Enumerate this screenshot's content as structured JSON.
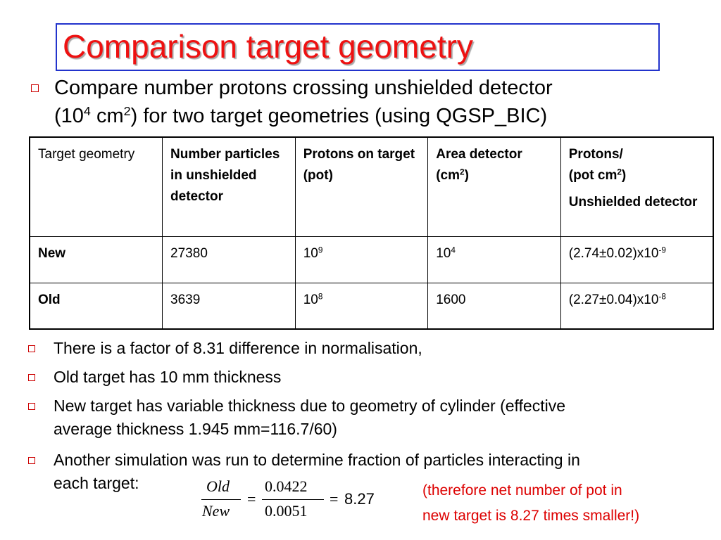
{
  "title": "Comparison target geometry",
  "intro": {
    "line1": "Compare number protons crossing unshielded detector",
    "line2_a": "(10",
    "line2_sup1": "4",
    "line2_b": " cm",
    "line2_sup2": "2",
    "line2_c": ") for two target geometries (using QGSP_BIC)"
  },
  "table": {
    "headers": {
      "geometry": "Target geometry",
      "particles": "Number particles in unshielded detector",
      "pot": "Protons on target (pot)",
      "area_a": "Area detector (cm",
      "area_sup": "2",
      "area_b": ")",
      "protons_l1": "Protons/",
      "protons_l2a": "(pot cm",
      "protons_l2sup": "2",
      "protons_l2b": ")",
      "protons_l3": "Unshielded detector"
    },
    "rows": [
      {
        "geometry": "New",
        "particles": "27380",
        "pot_base": "10",
        "pot_exp": "9",
        "area_base": "10",
        "area_exp": "4",
        "ratio_base": "(2.74±0.02)x10",
        "ratio_exp": "-9"
      },
      {
        "geometry": "Old",
        "particles": "3639",
        "pot_base": "10",
        "pot_exp": "8",
        "area_base": "1600",
        "area_exp": "",
        "ratio_base": "(2.27±0.04)x10",
        "ratio_exp": "-8"
      }
    ]
  },
  "bullets": [
    "There is a factor of 8.31 difference in normalisation,",
    "Old target has 10 mm thickness",
    "New target has variable thickness due to geometry of cylinder (effective",
    "average thickness 1.945 mm=116.7/60)",
    "Another simulation was run to determine fraction of particles interacting in",
    "each target:"
  ],
  "formula": {
    "num_left": "Old",
    "den_left": "New",
    "eq1": "=",
    "num_right": "0.0422",
    "den_right": "0.0051",
    "eq2": "=",
    "result": "8.27"
  },
  "note": {
    "line1": "(therefore net number of pot in",
    "line2": "new target is 8.27 times smaller!)"
  },
  "colors": {
    "title": "#ee1111",
    "title_border": "#2233cc",
    "bullet": "#cc0000",
    "note": "#dd0000"
  }
}
